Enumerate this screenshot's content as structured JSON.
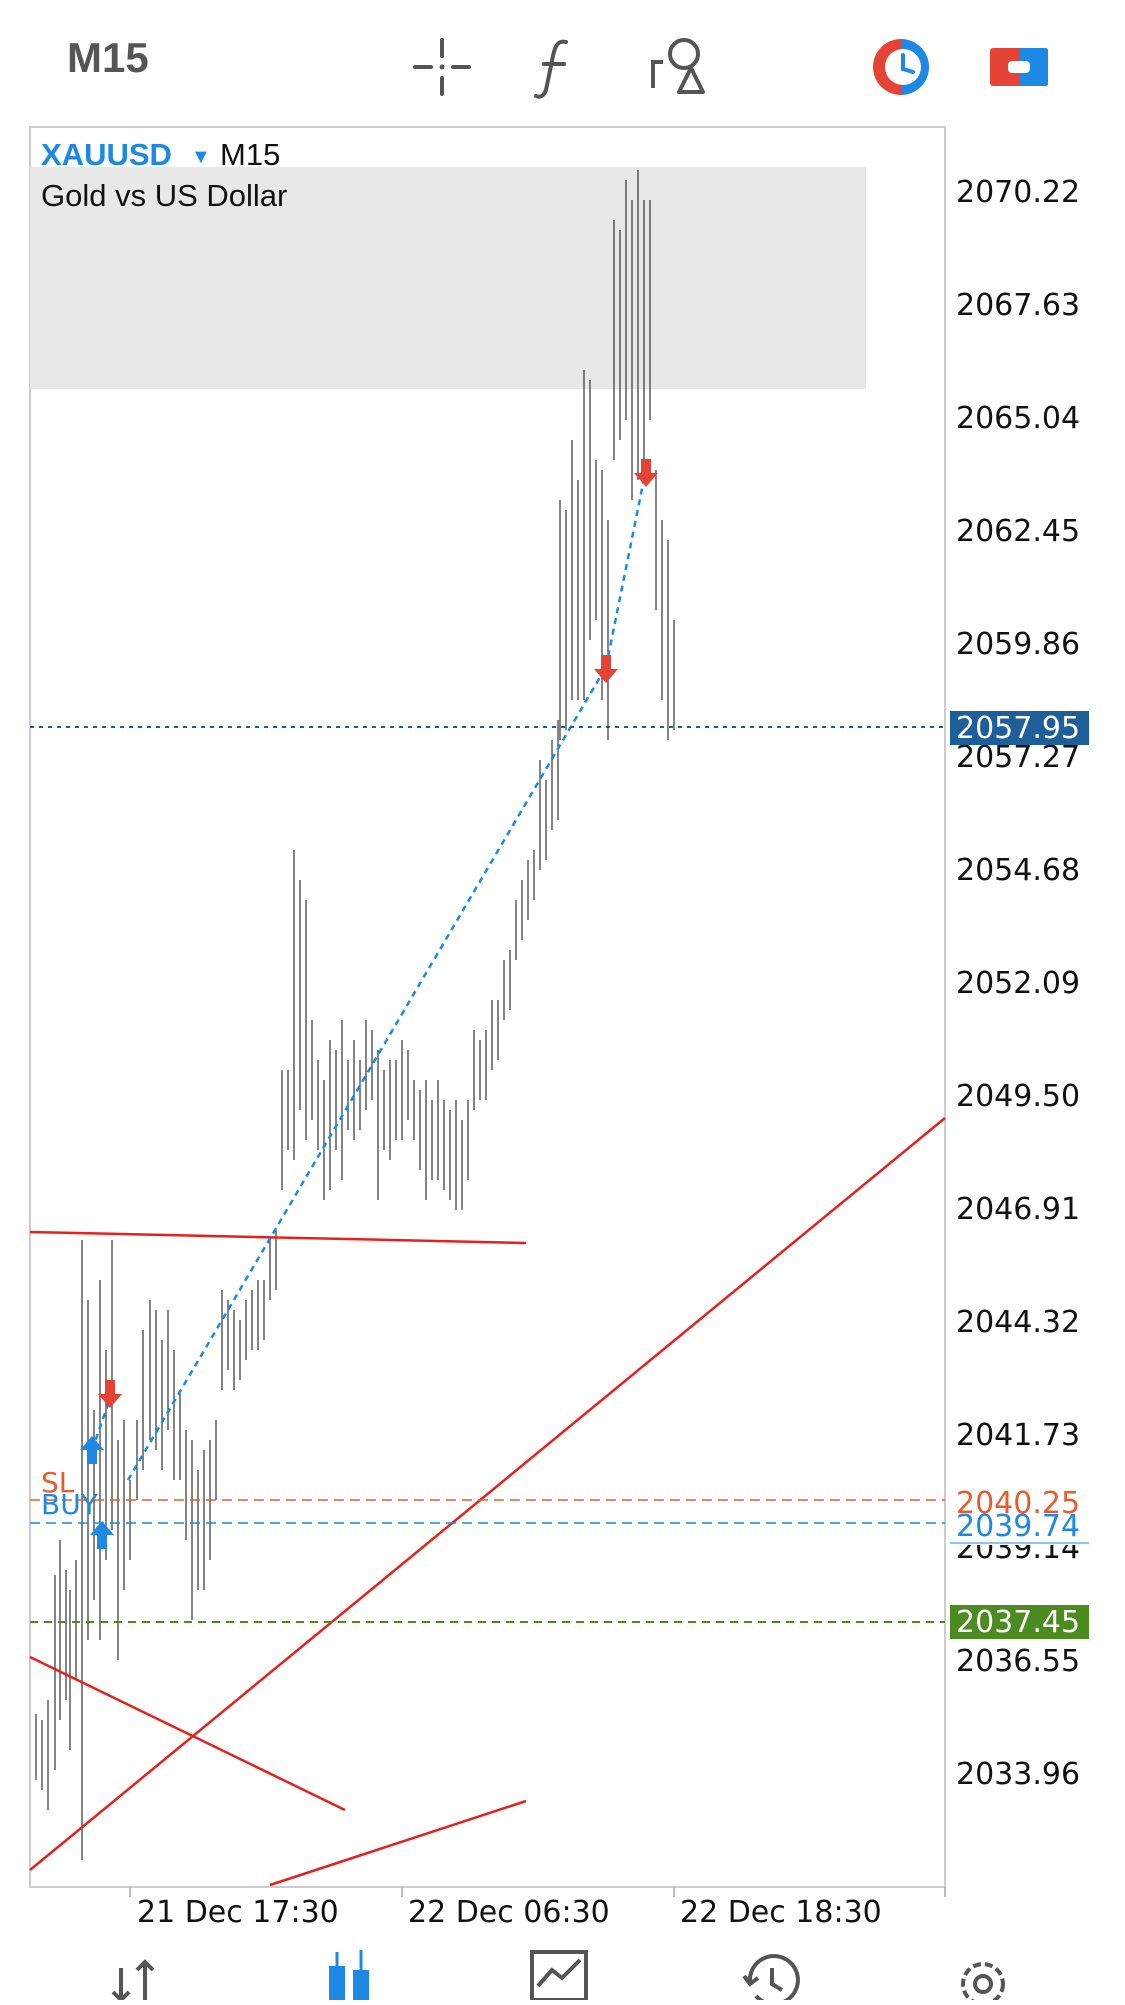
{
  "toolbar": {
    "timeframe": "M15",
    "icons": [
      "crosshair-icon",
      "indicators-icon",
      "objects-icon",
      "one-click-trading-icon",
      "trade-icon"
    ]
  },
  "chart": {
    "symbol": "XAUUSD",
    "timeframe": "M15",
    "description": "Gold vs US Dollar",
    "price_labels": [
      "2070.22",
      "2067.63",
      "2065.04",
      "2062.45",
      "2059.86",
      "2057.27",
      "2054.68",
      "2052.09",
      "2049.50",
      "2046.91",
      "2044.32",
      "2041.73",
      "2039.14",
      "2036.55",
      "2033.96"
    ],
    "time_labels": [
      "21 Dec 17:30",
      "22 Dec 06:30",
      "22 Dec 18:30"
    ],
    "current_price": "2057.95",
    "sl_price": "2040.25",
    "buy_price": "2039.74",
    "tp_price": "2037.45",
    "sl_label": "SL",
    "buy_label": "BUY",
    "colors": {
      "bid_line": "#1f5f99",
      "sl": "#e65c2e",
      "buy": "#1e88e5",
      "tp": "#4b8b1f",
      "trendline": "#e8201c",
      "trade_dotted": "#1e88e5"
    }
  },
  "bottom_nav": {
    "items": [
      "quotes-icon",
      "chart-icon",
      "trade-icon",
      "history-icon",
      "settings-icon"
    ],
    "active": "chart-icon"
  }
}
